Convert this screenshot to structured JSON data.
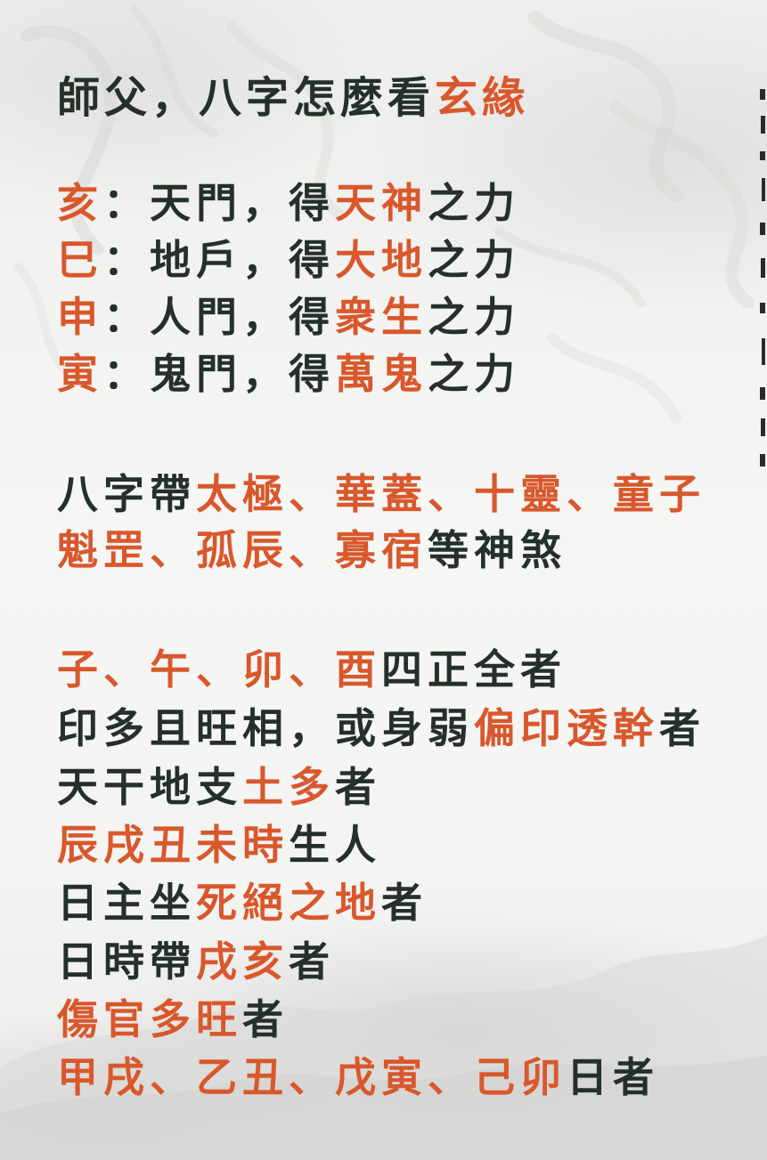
{
  "title": {
    "segments": [
      {
        "text": "師父，八字怎麼看",
        "color": "dark"
      },
      {
        "text": "玄緣",
        "color": "red"
      }
    ]
  },
  "doors": [
    {
      "segments": [
        {
          "text": "亥",
          "color": "red"
        },
        {
          "text": "：天門，得",
          "color": "dark"
        },
        {
          "text": "天神",
          "color": "red"
        },
        {
          "text": "之力",
          "color": "dark"
        }
      ]
    },
    {
      "segments": [
        {
          "text": "巳",
          "color": "red"
        },
        {
          "text": "：地戶，得",
          "color": "dark"
        },
        {
          "text": "大地",
          "color": "red"
        },
        {
          "text": "之力",
          "color": "dark"
        }
      ]
    },
    {
      "segments": [
        {
          "text": "申",
          "color": "red"
        },
        {
          "text": "：人門，得",
          "color": "dark"
        },
        {
          "text": "衆生",
          "color": "red"
        },
        {
          "text": "之力",
          "color": "dark"
        }
      ]
    },
    {
      "segments": [
        {
          "text": "寅",
          "color": "red"
        },
        {
          "text": "：鬼門，得",
          "color": "dark"
        },
        {
          "text": "萬鬼",
          "color": "red"
        },
        {
          "text": "之力",
          "color": "dark"
        }
      ]
    }
  ],
  "stars": [
    {
      "segments": [
        {
          "text": "八字帶",
          "color": "dark"
        },
        {
          "text": "太極、華蓋、十靈、童子",
          "color": "red"
        }
      ]
    },
    {
      "segments": [
        {
          "text": "魁罡、孤辰、寡宿",
          "color": "red"
        },
        {
          "text": "等神煞",
          "color": "dark"
        }
      ]
    }
  ],
  "conditions": [
    {
      "segments": [
        {
          "text": "子、午、卯、酉",
          "color": "red"
        },
        {
          "text": "四正全者",
          "color": "dark"
        }
      ]
    },
    {
      "segments": [
        {
          "text": "印多且旺相，或身弱",
          "color": "dark"
        },
        {
          "text": "偏印透幹",
          "color": "red"
        },
        {
          "text": "者",
          "color": "dark"
        }
      ]
    },
    {
      "segments": [
        {
          "text": "天干地支",
          "color": "dark"
        },
        {
          "text": "土多",
          "color": "red"
        },
        {
          "text": "者",
          "color": "dark"
        }
      ]
    },
    {
      "segments": [
        {
          "text": "辰戌丑未時",
          "color": "red"
        },
        {
          "text": "生人",
          "color": "dark"
        }
      ]
    },
    {
      "segments": [
        {
          "text": "日主坐",
          "color": "dark"
        },
        {
          "text": "死絕之地",
          "color": "red"
        },
        {
          "text": "者",
          "color": "dark"
        }
      ]
    },
    {
      "segments": [
        {
          "text": "日時帶",
          "color": "dark"
        },
        {
          "text": "戌亥",
          "color": "red"
        },
        {
          "text": "者",
          "color": "dark"
        }
      ]
    },
    {
      "segments": [
        {
          "text": "傷官多旺",
          "color": "red"
        },
        {
          "text": "者",
          "color": "dark"
        }
      ]
    },
    {
      "segments": [
        {
          "text": "甲戌、乙丑、戊寅、己卯",
          "color": "red"
        },
        {
          "text": "日者",
          "color": "dark"
        }
      ]
    }
  ],
  "colors": {
    "dark": "#243029",
    "red": "#d8582c",
    "background": "#f2f2f1"
  }
}
